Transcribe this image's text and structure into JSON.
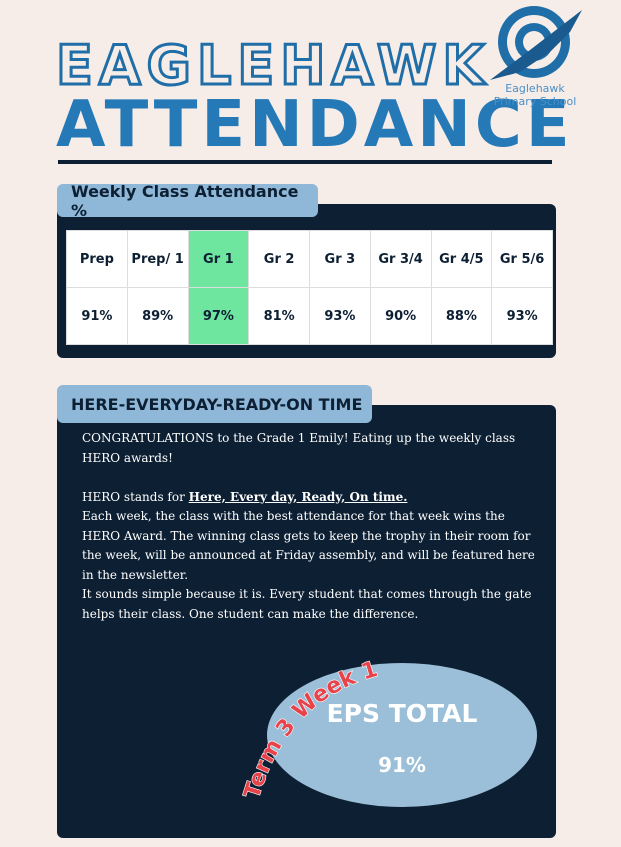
{
  "header": {
    "title_line1": "EAGLEHAWK",
    "title_line2": "ATTENDANCE"
  },
  "logo": {
    "name": "Eaglehawk",
    "subtitle": "Primary School"
  },
  "table": {
    "title": "Weekly Class Attendance %",
    "headers": [
      "Prep",
      "Prep/ 1",
      "Gr 1",
      "Gr 2",
      "Gr 3",
      "Gr 3/4",
      "Gr 4/5",
      "Gr 5/6"
    ],
    "values": [
      "91%",
      "89%",
      "97%",
      "81%",
      "93%",
      "90%",
      "88%",
      "93%"
    ]
  },
  "hero": {
    "title": "HERE-EVERYDAY-READY-ON TIME",
    "congrats": "CONGRATULATIONS to the Grade 1 Emily! Eating up the weekly class HERO awards!",
    "stands_lead": "HERO stands for ",
    "stands_emphasis": "Here, Every day, Ready, On time.",
    "each_week": "Each week, the class with the best attendance for that week wins the HERO Award. The winning class gets to keep the trophy in their room for the week, will be announced at Friday assembly, and will be featured here in the newsletter.",
    "simple": "It sounds simple because it is. Every student that comes through the gate helps their class. One student can make the difference."
  },
  "badge": {
    "term": "Term 3 Week 1",
    "label": "EPS TOTAL",
    "value": "91%"
  }
}
